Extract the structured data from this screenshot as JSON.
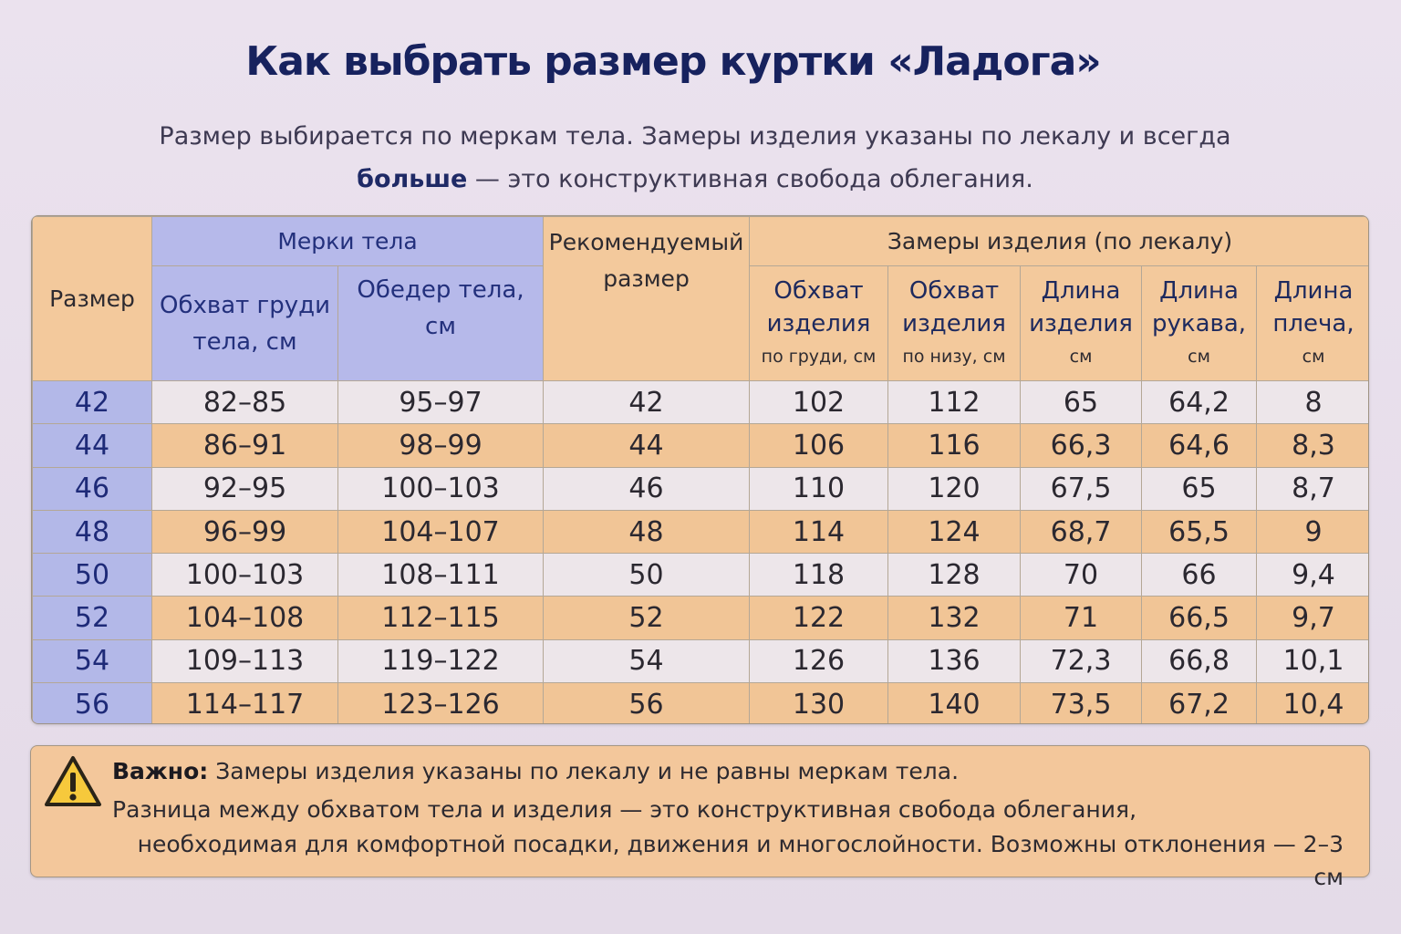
{
  "title": "Как выбрать размер куртки «Ладога»",
  "subtitle": {
    "line1": "Размер выбирается по меркам тела. Замеры изделия указаны по лекалу и всегда",
    "line2_bold": "больше",
    "line2_rest": " — это конструктивная свобода облегания."
  },
  "table": {
    "header": {
      "size": "Размер",
      "body_measures": "Мерки тела",
      "chest": "Обхват груди тела, см",
      "hips": "Обедер тела, см",
      "recommended": "Рекомендуемый размер",
      "garment": "Замеры изделия (по лекалу)",
      "g_chest_main": "Обхват изделия",
      "g_chest_unit": "по груди, см",
      "g_bottom_main": "Обхват изделия",
      "g_bottom_unit": "по низу, см",
      "g_length_main": "Длина изделия",
      "g_length_unit": "см",
      "g_sleeve_main": "Длина рукава,",
      "g_sleeve_unit": "см",
      "g_shoulder_main": "Длина плеча,",
      "g_shoulder_unit": "см"
    },
    "rows": [
      {
        "size": "42",
        "chest": "82–85",
        "hips": "95–97",
        "rec": "42",
        "g_chest": "102",
        "g_bottom": "112",
        "length": "65",
        "sleeve": "64,2",
        "shoulder": "8"
      },
      {
        "size": "44",
        "chest": "86–91",
        "hips": "98–99",
        "rec": "44",
        "g_chest": "106",
        "g_bottom": "116",
        "length": "66,3",
        "sleeve": "64,6",
        "shoulder": "8,3"
      },
      {
        "size": "46",
        "chest": "92–95",
        "hips": "100–103",
        "rec": "46",
        "g_chest": "110",
        "g_bottom": "120",
        "length": "67,5",
        "sleeve": "65",
        "shoulder": "8,7"
      },
      {
        "size": "48",
        "chest": "96–99",
        "hips": "104–107",
        "rec": "48",
        "g_chest": "114",
        "g_bottom": "124",
        "length": "68,7",
        "sleeve": "65,5",
        "shoulder": "9"
      },
      {
        "size": "50",
        "chest": "100–103",
        "hips": "108–111",
        "rec": "50",
        "g_chest": "118",
        "g_bottom": "128",
        "length": "70",
        "sleeve": "66",
        "shoulder": "9,4"
      },
      {
        "size": "52",
        "chest": "104–108",
        "hips": "112–115",
        "rec": "52",
        "g_chest": "122",
        "g_bottom": "132",
        "length": "71",
        "sleeve": "66,5",
        "shoulder": "9,7"
      },
      {
        "size": "54",
        "chest": "109–113",
        "hips": "119–122",
        "rec": "54",
        "g_chest": "126",
        "g_bottom": "136",
        "length": "72,3",
        "sleeve": "66,8",
        "shoulder": "10,1"
      },
      {
        "size": "56",
        "chest": "114–117",
        "hips": "123–126",
        "rec": "56",
        "g_chest": "130",
        "g_bottom": "140",
        "length": "73,5",
        "sleeve": "67,2",
        "shoulder": "10,4"
      }
    ]
  },
  "note": {
    "icon": "warning-icon",
    "bold": "Важно:",
    "line1": " Замеры изделия указаны по лекалу и не равны меркам тела.",
    "line2": "Разница между обхватом тела и изделия — это конструктивная свобода облегания,",
    "line3": "необходимая для комфортной посадки, движения и многослойности. Возможны отклонения — 2–3 см"
  }
}
